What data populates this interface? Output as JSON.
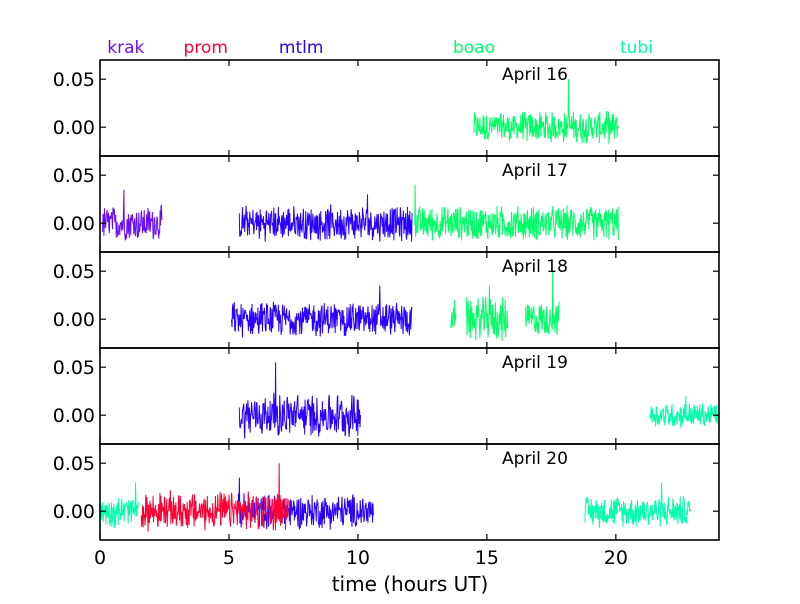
{
  "chart_data": {
    "type": "line",
    "xlabel": "time (hours UT)",
    "xlim": [
      0,
      24
    ],
    "x_ticks": [
      0,
      5,
      10,
      15,
      20
    ],
    "x_tick_labels": [
      "0",
      "5",
      "10",
      "15",
      "20"
    ],
    "ylim": [
      -0.03,
      0.07
    ],
    "y_ticks": [
      0.0,
      0.05
    ],
    "y_tick_labels": [
      "0.00",
      "0.05"
    ],
    "stations": [
      {
        "name": "krak",
        "color": "#6a0dff",
        "label_x": 1.0
      },
      {
        "name": "prom",
        "color": "#ff0033",
        "label_x": 4.1
      },
      {
        "name": "mtlm",
        "color": "#2a00ff",
        "label_x": 7.8
      },
      {
        "name": "boao",
        "color": "#00ff66",
        "label_x": 14.5
      },
      {
        "name": "tubi",
        "color": "#00ffaa",
        "label_x": 20.8
      }
    ],
    "panels": [
      {
        "title": "April 16",
        "series": [
          {
            "station": "boao",
            "x_range": [
              14.5,
              20.1
            ],
            "amplitude": 0.018,
            "peak": 0.05
          }
        ]
      },
      {
        "title": "April 17",
        "series": [
          {
            "station": "krak",
            "x_range": [
              0.1,
              2.4
            ],
            "amplitude": 0.02,
            "peak": 0.035
          },
          {
            "station": "mtlm",
            "x_range": [
              5.4,
              12.1
            ],
            "amplitude": 0.02,
            "peak": 0.03
          },
          {
            "station": "boao",
            "x_range": [
              12.2,
              20.1
            ],
            "amplitude": 0.02,
            "peak": 0.04
          }
        ]
      },
      {
        "title": "April 18",
        "series": [
          {
            "station": "mtlm",
            "x_range": [
              5.1,
              12.1
            ],
            "amplitude": 0.02,
            "peak": 0.035
          },
          {
            "station": "boao",
            "x_range": [
              13.6,
              13.8
            ],
            "amplitude": 0.015,
            "peak": 0.02
          },
          {
            "station": "boao",
            "x_range": [
              14.2,
              15.8
            ],
            "amplitude": 0.025,
            "peak": 0.035
          },
          {
            "station": "boao",
            "x_range": [
              16.5,
              17.8
            ],
            "amplitude": 0.02,
            "peak": 0.05
          }
        ]
      },
      {
        "title": "April 19",
        "series": [
          {
            "station": "mtlm",
            "x_range": [
              5.4,
              10.1
            ],
            "amplitude": 0.025,
            "peak": 0.055
          },
          {
            "station": "tubi",
            "x_range": [
              21.3,
              24.0
            ],
            "amplitude": 0.015,
            "peak": 0.02
          }
        ]
      },
      {
        "title": "April 20",
        "series": [
          {
            "station": "tubi",
            "x_range": [
              0.0,
              1.5
            ],
            "amplitude": 0.018,
            "peak": 0.03
          },
          {
            "station": "mtlm",
            "x_range": [
              5.3,
              10.6
            ],
            "amplitude": 0.02,
            "peak": 0.035
          },
          {
            "station": "prom",
            "x_range": [
              1.6,
              7.3
            ],
            "amplitude": 0.022,
            "peak": 0.05
          },
          {
            "station": "tubi",
            "x_range": [
              18.8,
              22.9
            ],
            "amplitude": 0.018,
            "peak": 0.03
          }
        ]
      }
    ]
  }
}
